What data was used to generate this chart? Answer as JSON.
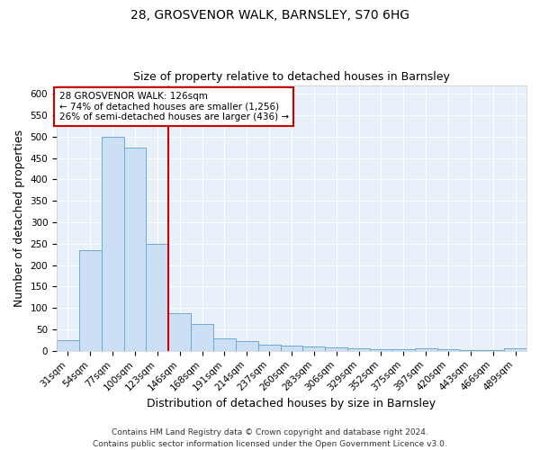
{
  "title1": "28, GROSVENOR WALK, BARNSLEY, S70 6HG",
  "title2": "Size of property relative to detached houses in Barnsley",
  "xlabel": "Distribution of detached houses by size in Barnsley",
  "ylabel": "Number of detached properties",
  "categories": [
    "31sqm",
    "54sqm",
    "77sqm",
    "100sqm",
    "123sqm",
    "146sqm",
    "168sqm",
    "191sqm",
    "214sqm",
    "237sqm",
    "260sqm",
    "283sqm",
    "306sqm",
    "329sqm",
    "352sqm",
    "375sqm",
    "397sqm",
    "420sqm",
    "443sqm",
    "466sqm",
    "489sqm"
  ],
  "values": [
    25,
    235,
    500,
    475,
    250,
    88,
    62,
    30,
    23,
    14,
    12,
    11,
    9,
    5,
    3,
    3,
    5,
    3,
    1,
    1,
    5
  ],
  "bar_color": "#ccdff5",
  "bar_edge_color": "#6aaad4",
  "vline_color": "#cc0000",
  "annotation_text": "28 GROSVENOR WALK: 126sqm\n← 74% of detached houses are smaller (1,256)\n26% of semi-detached houses are larger (436) →",
  "annotation_box_color": "white",
  "annotation_box_edge_color": "#cc0000",
  "ylim": [
    0,
    620
  ],
  "yticks": [
    0,
    50,
    100,
    150,
    200,
    250,
    300,
    350,
    400,
    450,
    500,
    550,
    600
  ],
  "footnote": "Contains HM Land Registry data © Crown copyright and database right 2024.\nContains public sector information licensed under the Open Government Licence v3.0.",
  "bg_color": "#e8f0fa",
  "grid_color": "white",
  "title1_fontsize": 10,
  "title2_fontsize": 9,
  "xlabel_fontsize": 9,
  "ylabel_fontsize": 9,
  "footnote_fontsize": 6.5,
  "tick_fontsize": 7.5,
  "annot_fontsize": 7.5
}
